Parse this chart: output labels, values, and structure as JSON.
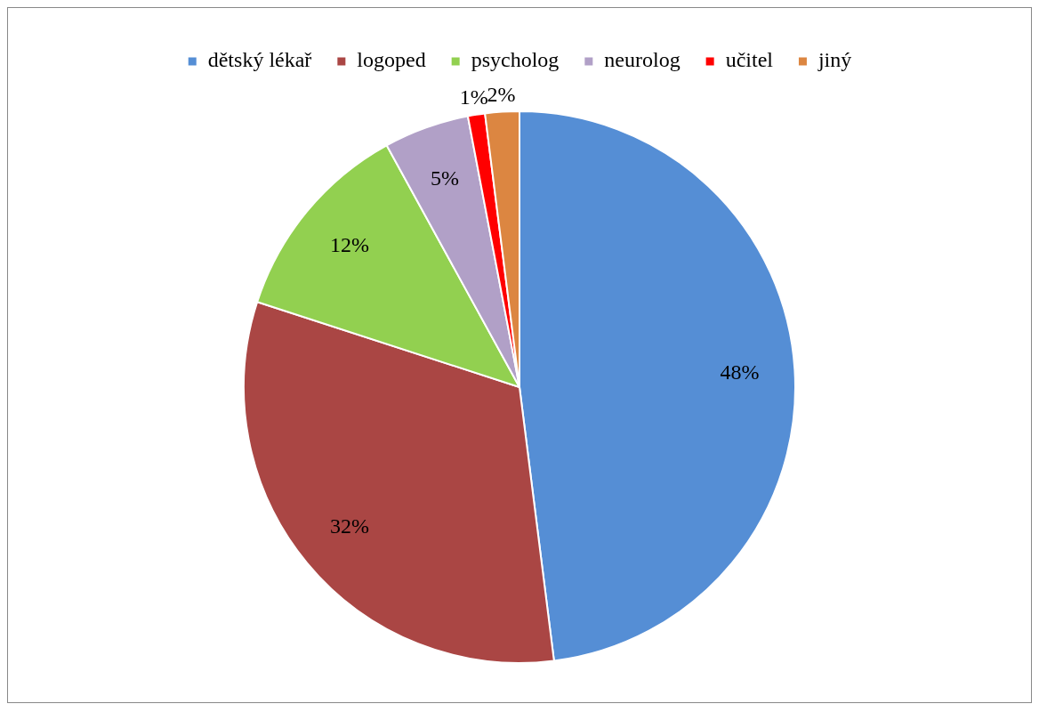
{
  "chart_data": {
    "type": "pie",
    "categories": [
      "dětský lékař",
      "logoped",
      "psycholog",
      "neurolog",
      "učitel",
      "jiný"
    ],
    "values": [
      48,
      32,
      12,
      5,
      1,
      2
    ],
    "colors": [
      "#558ed5",
      "#aa4644",
      "#92d050",
      "#b1a0c7",
      "#ff0000",
      "#dc8641"
    ],
    "value_labels": [
      "48%",
      "32%",
      "12%",
      "5%",
      "1%",
      "2%"
    ],
    "legend": "top"
  }
}
